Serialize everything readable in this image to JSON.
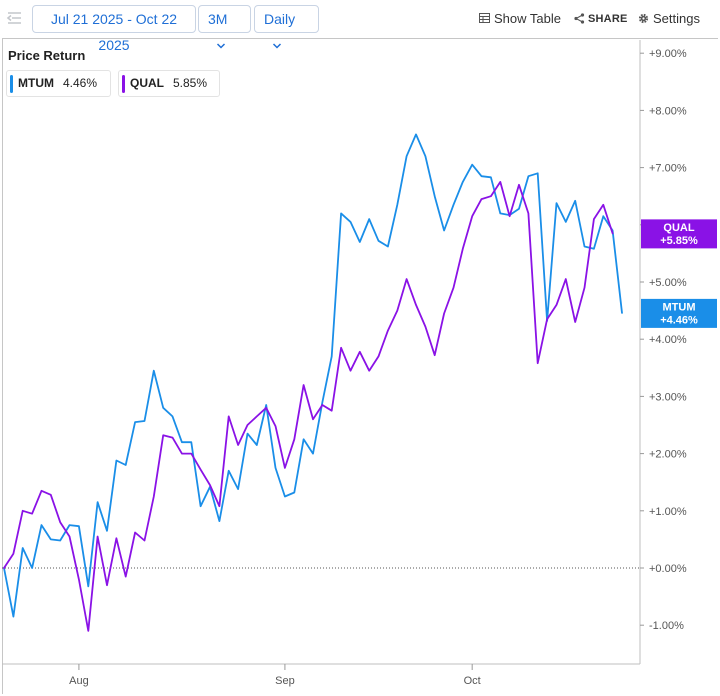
{
  "toolbar": {
    "date_range": "Jul 21 2025 - Oct 22 2025",
    "range": "3M",
    "interval": "Daily",
    "show_table": "Show Table",
    "share": "SHARE",
    "settings": "Settings"
  },
  "chart_data": {
    "type": "line",
    "title": "Price Return",
    "x_labels": [
      "Aug",
      "Sep",
      "Oct"
    ],
    "y_ticks": [
      "+9.00%",
      "+8.00%",
      "+7.00%",
      "+6.00%",
      "+5.00%",
      "+4.00%",
      "+3.00%",
      "+2.00%",
      "+1.00%",
      "+0.00%",
      "-1.00%"
    ],
    "ylim": [
      -1.6,
      9.3
    ],
    "ylabel": "",
    "xlabel": "",
    "zero_line": "dotted",
    "grid": false,
    "legend_position": "top-left",
    "series": [
      {
        "name": "MTUM",
        "legend_value": "4.46%",
        "end_label_line1": "MTUM",
        "end_label_line2": "+4.46%",
        "color": "#1a8ee8",
        "values": [
          0.0,
          -0.85,
          0.35,
          0.0,
          0.75,
          0.5,
          0.48,
          0.75,
          0.73,
          -0.32,
          1.15,
          0.65,
          1.88,
          1.8,
          2.55,
          2.57,
          3.45,
          2.8,
          2.65,
          2.2,
          2.2,
          1.08,
          1.42,
          0.82,
          1.7,
          1.38,
          2.35,
          2.15,
          2.85,
          1.75,
          1.25,
          1.32,
          2.25,
          2.0,
          2.9,
          3.7,
          6.2,
          6.05,
          5.7,
          6.1,
          5.72,
          5.62,
          6.35,
          7.2,
          7.58,
          7.2,
          6.5,
          5.9,
          6.35,
          6.75,
          7.05,
          6.85,
          6.83,
          6.2,
          6.17,
          6.28,
          6.85,
          6.9,
          4.32,
          6.38,
          6.05,
          6.42,
          5.62,
          5.58,
          6.15,
          5.9,
          4.46
        ]
      },
      {
        "name": "QUAL",
        "legend_value": "5.85%",
        "end_label_line1": "QUAL",
        "end_label_line2": "+5.85%",
        "color": "#8a12e6",
        "values": [
          0.0,
          0.25,
          1.0,
          0.95,
          1.35,
          1.28,
          0.8,
          0.55,
          -0.2,
          -1.1,
          0.55,
          -0.3,
          0.52,
          -0.15,
          0.62,
          0.48,
          1.25,
          2.32,
          2.28,
          2.0,
          2.0,
          1.72,
          1.45,
          1.08,
          2.65,
          2.15,
          2.5,
          2.65,
          2.8,
          2.48,
          1.75,
          2.25,
          3.2,
          2.6,
          2.85,
          2.75,
          3.85,
          3.45,
          3.78,
          3.45,
          3.7,
          4.15,
          4.5,
          5.05,
          4.6,
          4.22,
          3.72,
          4.45,
          4.9,
          5.58,
          6.15,
          6.45,
          6.5,
          6.75,
          6.15,
          6.7,
          6.2,
          3.58,
          4.35,
          4.6,
          5.05,
          4.3,
          4.9,
          6.1,
          6.35,
          5.85
        ]
      }
    ]
  }
}
